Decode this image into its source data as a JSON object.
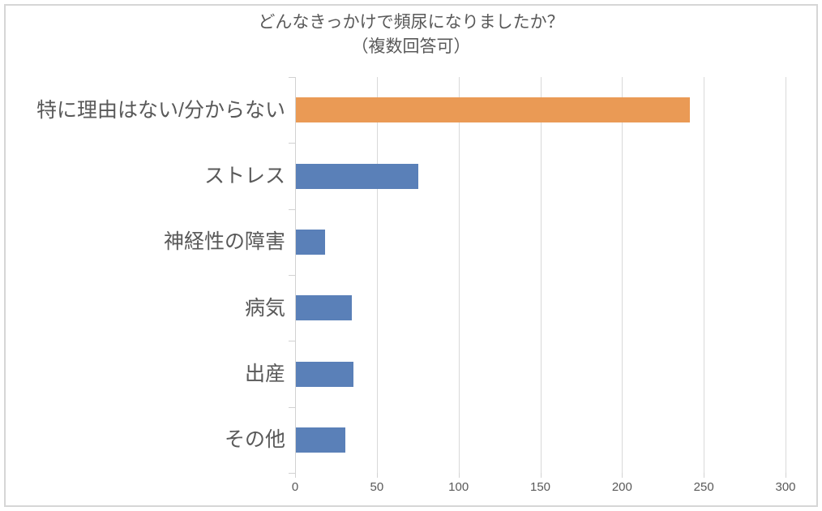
{
  "title": {
    "line1": "どんなきっかけで頻尿になりましたか？",
    "line2": "（複数回答可）"
  },
  "chart_data": {
    "type": "bar",
    "orientation": "horizontal",
    "title": "どんなきっかけで頻尿になりましたか？（複数回答可）",
    "categories": [
      "特に理由はない/分からない",
      "ストレス",
      "神経性の障害",
      "病気",
      "出産",
      "その他"
    ],
    "values": [
      241,
      75,
      18,
      34,
      35,
      30
    ],
    "bar_colors": [
      "#ea9a55",
      "#5a80b8",
      "#5a80b8",
      "#5a80b8",
      "#5a80b8",
      "#5a80b8"
    ],
    "xlabel": "",
    "ylabel": "",
    "xlim": [
      0,
      300
    ],
    "x_tick_values": [
      0,
      50,
      100,
      150,
      200,
      250,
      300
    ],
    "x_tick_labels": [
      "0",
      "50",
      "100",
      "150",
      "200",
      "250",
      "300"
    ],
    "grid": true,
    "legend": false,
    "value_labels_shown": false
  },
  "colors": {
    "accent_orange": "#ea9a55",
    "accent_blue": "#5a80b8",
    "text": "#595959",
    "gridline": "#d9d9d9",
    "axis": "#d2d2d2",
    "frame_border": "#d6d6d6",
    "background": "#ffffff"
  }
}
